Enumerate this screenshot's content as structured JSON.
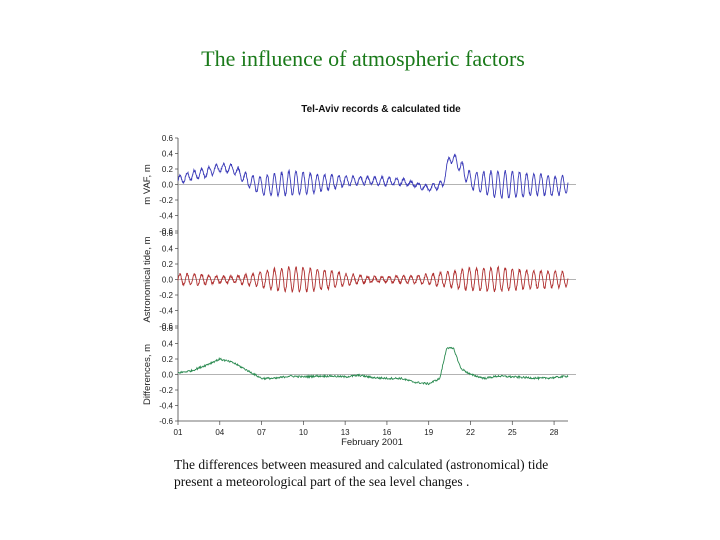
{
  "slide": {
    "title": "The influence of atmospheric factors",
    "caption_line1": "The differences between measured and calculated (astronomical) tide",
    "caption_line2": "present a meteorological part of the sea level changes ."
  },
  "chart_data": {
    "type": "line",
    "title": "Tel-Aviv records & calculated tide",
    "xlabel": "February 2001",
    "x_ticks": [
      "01",
      "04",
      "07",
      "10",
      "13",
      "16",
      "19",
      "22",
      "25",
      "28"
    ],
    "xlim": [
      1,
      29
    ],
    "grid": false,
    "panels": [
      {
        "name": "measured",
        "ylabel": "m VAF, m",
        "ylim": [
          -0.6,
          0.6
        ],
        "y_ticks": [
          "0.6",
          "0.4",
          "0.2",
          "0.0",
          "-0.2",
          "-0.4",
          "-0.6"
        ],
        "color": "#3a3ab8",
        "series": {
          "x": [
            1,
            2,
            3,
            4,
            5,
            6,
            7,
            8,
            9,
            10,
            11,
            12,
            13,
            14,
            15,
            16,
            17,
            18,
            19,
            20,
            20.5,
            21,
            22,
            23,
            24,
            25,
            26,
            27,
            28,
            29
          ],
          "baseline": [
            0.05,
            0.12,
            0.15,
            0.22,
            0.2,
            0.05,
            -0.02,
            0.0,
            0.02,
            0.02,
            0.02,
            0.03,
            0.04,
            0.05,
            0.05,
            0.04,
            0.04,
            0.0,
            -0.05,
            0.0,
            0.35,
            0.3,
            0.05,
            0.02,
            0.0,
            0.0,
            0.0,
            0.0,
            -0.02,
            0.0
          ],
          "amplitude": [
            0.06,
            0.08,
            0.1,
            0.1,
            0.1,
            0.12,
            0.14,
            0.15,
            0.15,
            0.13,
            0.1,
            0.08,
            0.06,
            0.05,
            0.06,
            0.07,
            0.07,
            0.05,
            0.07,
            0.08,
            0.08,
            0.1,
            0.12,
            0.14,
            0.16,
            0.15,
            0.13,
            0.12,
            0.12,
            0.12
          ]
        }
      },
      {
        "name": "astronomical",
        "ylabel": "Astronomical tide, m",
        "ylim": [
          -0.6,
          0.6
        ],
        "y_ticks": [
          "0.6",
          "0.4",
          "0.2",
          "0.0",
          "-0.2",
          "-0.4",
          "-0.6"
        ],
        "color": "#b03030",
        "series": {
          "x": [
            1,
            2,
            3,
            4,
            5,
            6,
            7,
            8,
            9,
            10,
            11,
            12,
            13,
            14,
            15,
            16,
            17,
            18,
            19,
            20,
            21,
            22,
            23,
            24,
            25,
            26,
            27,
            28,
            29
          ],
          "baseline": [
            0,
            0,
            0,
            0,
            0,
            0,
            0,
            0,
            0,
            0,
            0,
            0,
            0,
            0,
            0,
            0,
            0,
            0,
            0,
            0,
            0,
            0,
            0,
            0,
            0,
            0,
            0,
            0,
            0
          ],
          "amplitude": [
            0.08,
            0.1,
            0.1,
            0.08,
            0.07,
            0.1,
            0.13,
            0.15,
            0.15,
            0.14,
            0.12,
            0.1,
            0.07,
            0.05,
            0.04,
            0.05,
            0.07,
            0.1,
            0.12,
            0.14,
            0.15,
            0.16,
            0.15,
            0.14,
            0.12,
            0.1,
            0.1,
            0.1,
            0.1
          ]
        }
      },
      {
        "name": "difference",
        "ylabel": "Differences, m",
        "ylim": [
          -0.6,
          0.6
        ],
        "y_ticks": [
          "0.6",
          "0.4",
          "0.2",
          "0.0",
          "-0.2",
          "-0.4",
          "-0.6"
        ],
        "color": "#2a8a50",
        "series": {
          "x": [
            1,
            2,
            3,
            4,
            5,
            6,
            7,
            8,
            9,
            10,
            11,
            12,
            13,
            14,
            15,
            16,
            17,
            18,
            19,
            19.8,
            20.3,
            20.8,
            21.3,
            22,
            23,
            24,
            25,
            26,
            27,
            28,
            29
          ],
          "values": [
            0.02,
            0.05,
            0.12,
            0.2,
            0.15,
            0.05,
            -0.05,
            -0.05,
            -0.02,
            -0.03,
            -0.02,
            -0.02,
            -0.03,
            -0.01,
            -0.04,
            -0.05,
            -0.05,
            -0.1,
            -0.12,
            -0.05,
            0.35,
            0.33,
            0.08,
            0.0,
            -0.05,
            -0.02,
            -0.03,
            -0.04,
            -0.05,
            -0.04,
            -0.02
          ]
        }
      }
    ]
  }
}
